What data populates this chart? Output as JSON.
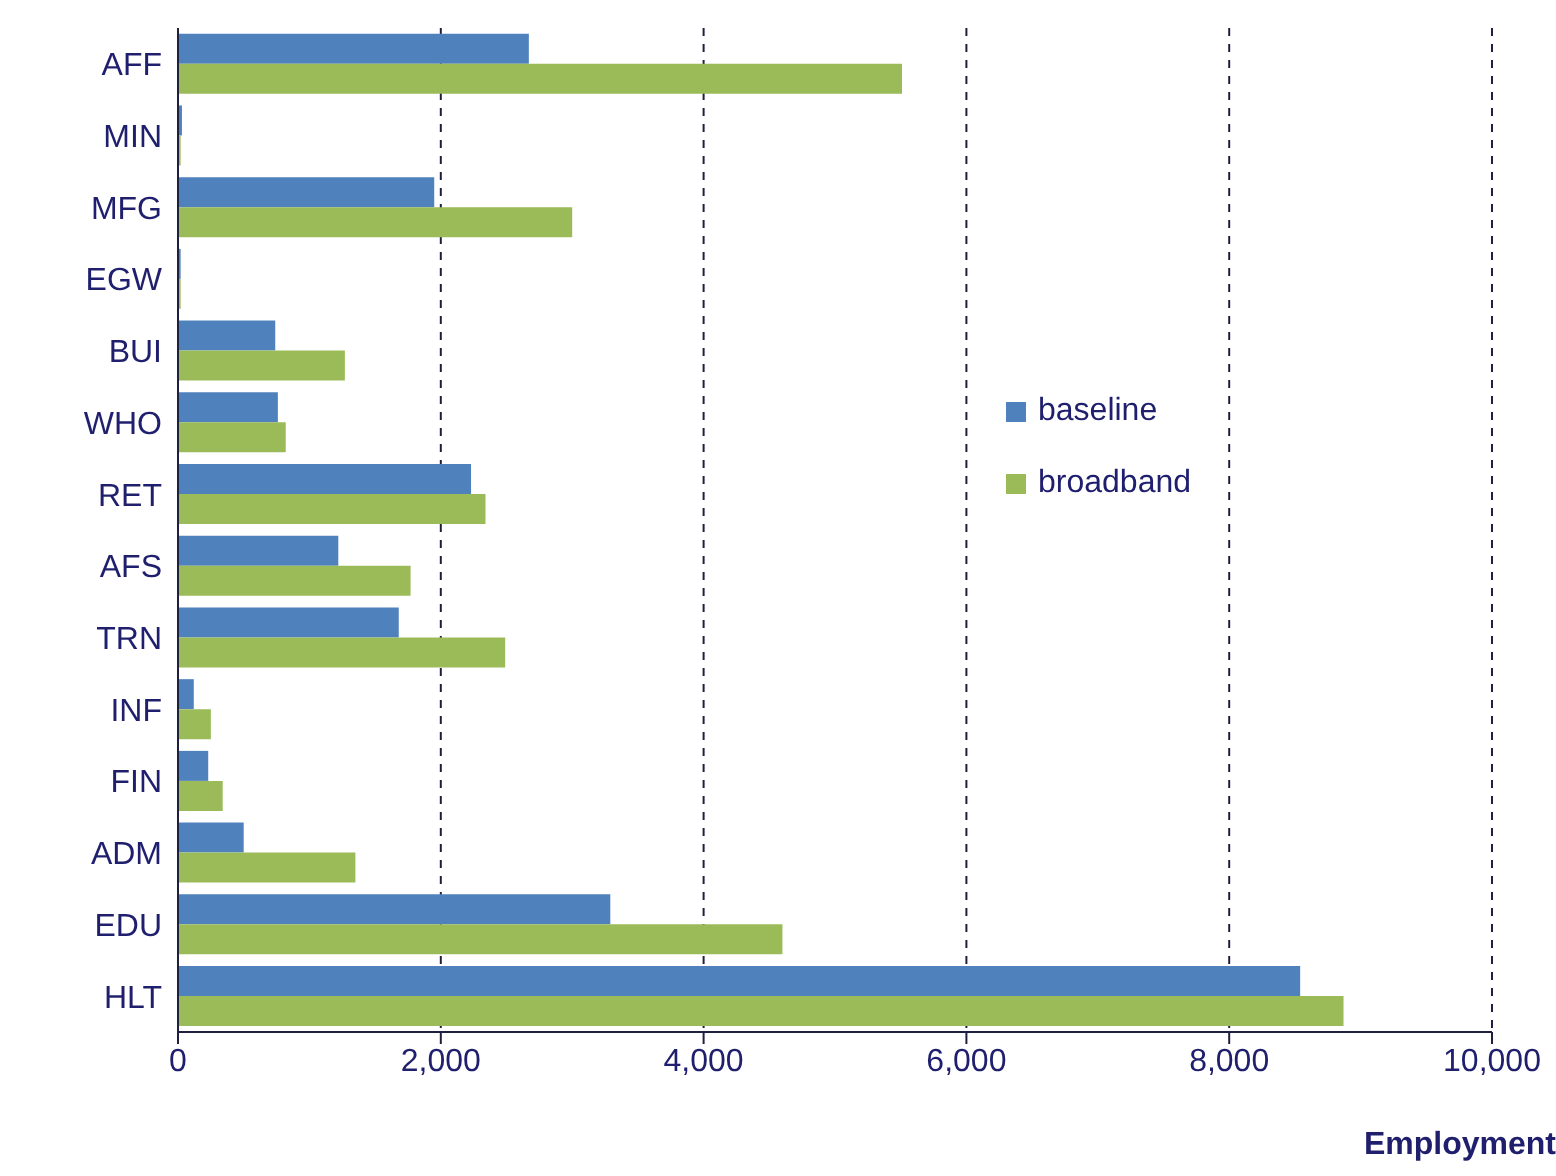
{
  "chart_data": {
    "type": "bar",
    "orientation": "horizontal",
    "xlabel": "Employment",
    "categories": [
      "AFF",
      "MIN",
      "MFG",
      "EGW",
      "BUI",
      "WHO",
      "RET",
      "AFS",
      "TRN",
      "INF",
      "FIN",
      "ADM",
      "EDU",
      "HLT"
    ],
    "series": [
      {
        "name": "baseline",
        "color": "#4f81bd",
        "values": [
          2670,
          30,
          1950,
          20,
          740,
          760,
          2230,
          1220,
          1680,
          120,
          230,
          500,
          3290,
          8540
        ]
      },
      {
        "name": "broadband",
        "color": "#9bbb59",
        "values": [
          5510,
          20,
          3000,
          20,
          1270,
          820,
          2340,
          1770,
          2490,
          250,
          340,
          1350,
          4600,
          8870
        ]
      }
    ],
    "xlim": [
      0,
      10000
    ],
    "xticks": [
      {
        "value": 0,
        "label": "0"
      },
      {
        "value": 2000,
        "label": "2,000"
      },
      {
        "value": 4000,
        "label": "4,000"
      },
      {
        "value": 6000,
        "label": "6,000"
      },
      {
        "value": 8000,
        "label": "8,000"
      },
      {
        "value": 10000,
        "label": "10,000"
      }
    ],
    "grid": "x",
    "legend": "right"
  }
}
